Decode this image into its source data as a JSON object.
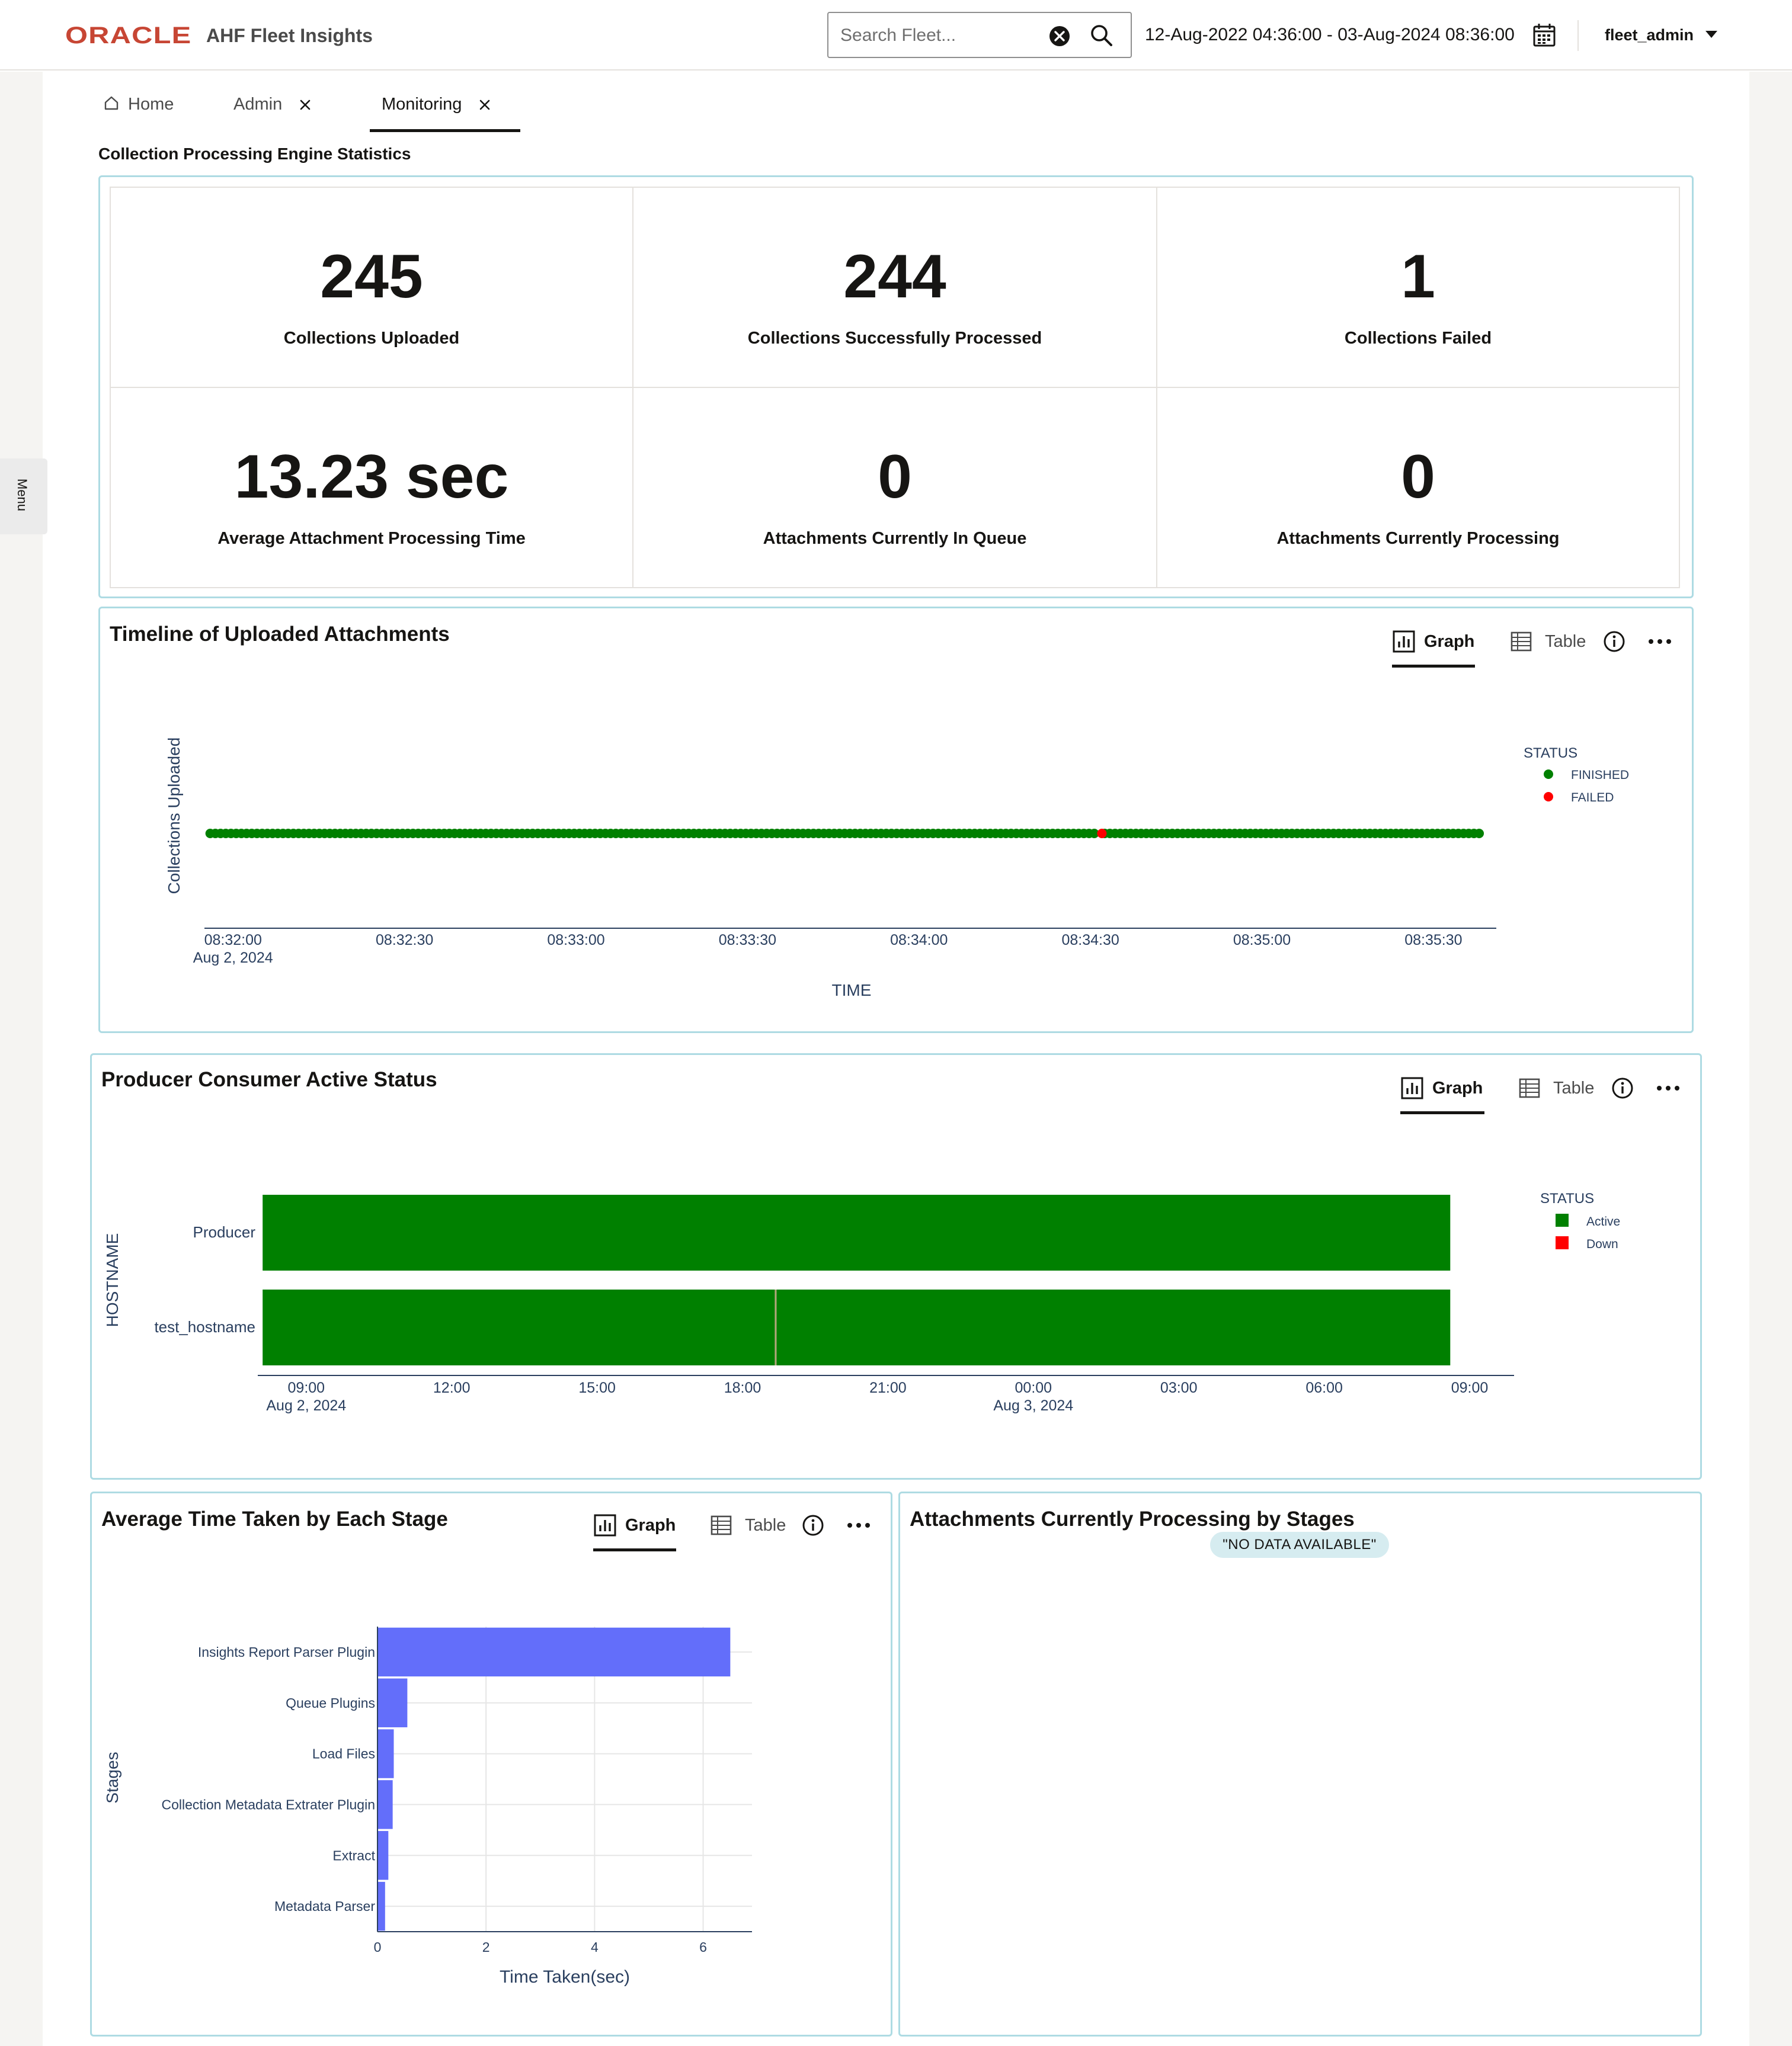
{
  "header": {
    "brand": "ORACLE",
    "app_title": "AHF Fleet Insights",
    "search_placeholder": "Search Fleet...",
    "date_range": "12-Aug-2022 04:36:00 - 03-Aug-2024 08:36:00",
    "user": "fleet_admin"
  },
  "side": {
    "menu_label": "Menu"
  },
  "tabs": [
    {
      "label": "Home",
      "icon": "home-icon",
      "closable": false,
      "active": false
    },
    {
      "label": "Admin",
      "closable": true,
      "active": false
    },
    {
      "label": "Monitoring",
      "closable": true,
      "active": true
    }
  ],
  "section_title": "Collection Processing Engine Statistics",
  "stats": [
    {
      "value": "245",
      "label": "Collections Uploaded"
    },
    {
      "value": "244",
      "label": "Collections Successfully Processed"
    },
    {
      "value": "1",
      "label": "Collections Failed"
    },
    {
      "value": "13.23 sec",
      "label": "Average Attachment Processing Time"
    },
    {
      "value": "0",
      "label": "Attachments Currently In Queue"
    },
    {
      "value": "0",
      "label": "Attachments Currently Processing"
    }
  ],
  "view_controls": {
    "graph_label": "Graph",
    "table_label": "Table",
    "active_view": "Graph"
  },
  "timeline": {
    "title": "Timeline of Uploaded Attachments",
    "chart_data": {
      "type": "scatter",
      "xlabel": "TIME",
      "ylabel": "Collections Uploaded",
      "x_ticks": [
        "08:32:00",
        "08:32:30",
        "08:33:00",
        "08:33:30",
        "08:34:00",
        "08:34:30",
        "08:35:00",
        "08:35:30"
      ],
      "x_tick_date": "Aug 2, 2024",
      "xlim": [
        "2024-08-02 08:31:55",
        "2024-08-02 08:35:41"
      ],
      "legend_title": "STATUS",
      "legend_position": "right",
      "series": [
        {
          "name": "FINISHED",
          "color": "#008000"
        },
        {
          "name": "FAILED",
          "color": "#ff0000"
        }
      ],
      "first_upload": "2024-08-02 08:31:56",
      "last_upload": "2024-08-02 08:35:38",
      "uploads_finished": 244,
      "uploads_failed": 1,
      "failed_upload_time": "2024-08-02 08:34:32"
    }
  },
  "producer": {
    "title": "Producer Consumer Active Status",
    "chart_data": {
      "type": "bar",
      "orientation": "horizontal-timeline",
      "ylabel": "HOSTNAME",
      "categories": [
        "Producer",
        "test_hostname"
      ],
      "x_ticks": [
        "09:00",
        "12:00",
        "15:00",
        "18:00",
        "21:00",
        "00:00",
        "03:00",
        "06:00",
        "09:00"
      ],
      "x_tick_dates": {
        "0": "Aug 2, 2024",
        "5": "Aug 3, 2024"
      },
      "xlim": [
        "2024-08-02 08:00",
        "2024-08-03 09:55"
      ],
      "legend_title": "STATUS",
      "legend_position": "right",
      "series": [
        {
          "name": "Active",
          "color": "#008000"
        },
        {
          "name": "Down",
          "color": "#ff0000"
        }
      ],
      "segments": [
        {
          "host": "Producer",
          "status": "Active",
          "start": "2024-08-02 08:06",
          "end": "2024-08-03 08:36"
        },
        {
          "host": "test_hostname",
          "status": "Active",
          "start": "2024-08-02 08:06",
          "end": "2024-08-02 18:40"
        },
        {
          "host": "test_hostname",
          "status": "Active",
          "start": "2024-08-02 18:42",
          "end": "2024-08-03 08:36"
        }
      ]
    }
  },
  "avg_time": {
    "title": "Average Time Taken by Each Stage",
    "chart_data": {
      "type": "bar",
      "orientation": "horizontal",
      "xlabel": "Time Taken(sec)",
      "ylabel": "Stages",
      "categories": [
        "Insights Report Parser Plugin",
        "Queue Plugins",
        "Load Files",
        "Collection Metadata Extrater Plugin",
        "Extract",
        "Metadata Parser"
      ],
      "values": [
        6.5,
        0.55,
        0.3,
        0.28,
        0.2,
        0.14
      ],
      "xlim": [
        0,
        6.9
      ],
      "x_ticks": [
        0,
        2,
        4,
        6
      ],
      "color": "#636efa",
      "grid": true
    }
  },
  "attachments_by_stage": {
    "title": "Attachments Currently Processing by Stages",
    "no_data": "\"NO DATA AVAILABLE\""
  }
}
